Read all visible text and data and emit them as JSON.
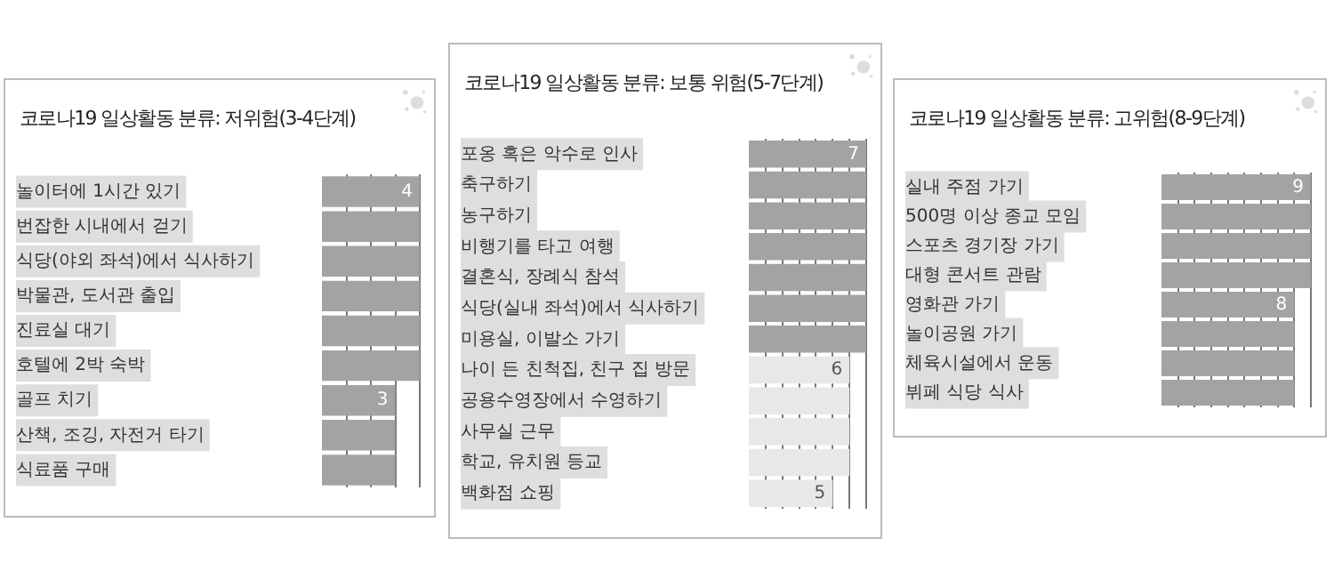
{
  "chart_data": [
    {
      "type": "bar",
      "orientation": "horizontal",
      "title": "코로나19 일상활동 분류: 저위험(3-4단계)",
      "categories": [
        "놀이터에 1시간 있기",
        "번잡한 시내에서 걷기",
        "식당(야외 좌석)에서 식사하기",
        "박물관, 도서관 출입",
        "진료실 대기",
        "호텔에 2박 숙박",
        "골프 치기",
        "산책, 조깅, 자전거 타기",
        "식료품 구매"
      ],
      "values": [
        4,
        4,
        4,
        4,
        4,
        4,
        3,
        3,
        3
      ],
      "colors": [
        "#a3a3a3",
        "#a3a3a3",
        "#a3a3a3",
        "#a3a3a3",
        "#a3a3a3",
        "#a3a3a3",
        "#a3a3a3",
        "#a3a3a3",
        "#a3a3a3"
      ],
      "value_labels": [
        "4",
        null,
        null,
        null,
        null,
        null,
        "3",
        null,
        null
      ],
      "xlim": [
        0,
        4
      ],
      "xticks": [
        {
          "value": 1,
          "label": null
        },
        {
          "value": 2,
          "label": null
        },
        {
          "value": 3,
          "label": null
        },
        {
          "value": 4,
          "label": null
        }
      ],
      "grid": "x",
      "tick_labels": "y"
    },
    {
      "type": "bar",
      "orientation": "horizontal",
      "title": "코로나19 일상활동 분류: 보통 위험(5-7단계)",
      "categories": [
        "포옹 혹은 악수로 인사",
        "축구하기",
        "농구하기",
        "비행기를 타고 여행",
        "결혼식, 장례식 참석",
        "식당(실내 좌석)에서 식사하기",
        "미용실, 이발소 가기",
        "나이 든 친척집, 친구 집 방문",
        "공용수영장에서 수영하기",
        "사무실 근무",
        "학교, 유치원 등교",
        "백화점 쇼핑"
      ],
      "values": [
        7,
        7,
        7,
        7,
        7,
        7,
        7,
        6,
        6,
        6,
        6,
        5
      ],
      "colors": [
        "#a3a3a3",
        "#a3a3a3",
        "#a3a3a3",
        "#a3a3a3",
        "#a3a3a3",
        "#a3a3a3",
        "#a3a3a3",
        "#e8e8e8",
        "#e8e8e8",
        "#e8e8e8",
        "#e8e8e8",
        "#e8e8e8"
      ],
      "value_labels": [
        "7",
        null,
        null,
        null,
        null,
        null,
        null,
        "6",
        null,
        null,
        null,
        "5"
      ],
      "xlim": [
        0,
        7
      ],
      "xticks": [
        {
          "value": 1,
          "label": null
        },
        {
          "value": 2,
          "label": null
        },
        {
          "value": 3,
          "label": null
        },
        {
          "value": 4,
          "label": null
        },
        {
          "value": 5,
          "label": null
        },
        {
          "value": 6,
          "label": null
        },
        {
          "value": 7,
          "label": null
        }
      ],
      "grid": "x",
      "tick_labels": "y"
    },
    {
      "type": "bar",
      "orientation": "horizontal",
      "title": "코로나19 일상활동 분류: 고위험(8-9단계)",
      "categories": [
        "실내 주점 가기",
        "500명 이상 종교 모임",
        "스포츠 경기장 가기",
        "대형 콘서트 관람",
        "영화관 가기",
        "놀이공원 가기",
        "체육시설에서 운동",
        "뷔페 식당 식사"
      ],
      "values": [
        9,
        9,
        9,
        9,
        8,
        8,
        8,
        8
      ],
      "colors": [
        "#a3a3a3",
        "#a3a3a3",
        "#a3a3a3",
        "#a3a3a3",
        "#a3a3a3",
        "#a3a3a3",
        "#a3a3a3",
        "#a3a3a3"
      ],
      "value_labels": [
        "9",
        null,
        null,
        null,
        "8",
        null,
        null,
        null
      ],
      "xlim": [
        0,
        9
      ],
      "xticks": [
        {
          "value": 1,
          "label": null
        },
        {
          "value": 2,
          "label": null
        },
        {
          "value": 3,
          "label": null
        },
        {
          "value": 4,
          "label": null
        },
        {
          "value": 5,
          "label": null
        },
        {
          "value": 6,
          "label": null
        },
        {
          "value": 7,
          "label": null
        },
        {
          "value": 8,
          "label": null
        },
        {
          "value": 9,
          "label": null
        }
      ],
      "grid": "x",
      "tick_labels": "y"
    }
  ]
}
